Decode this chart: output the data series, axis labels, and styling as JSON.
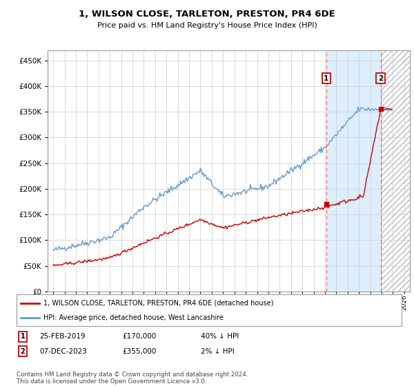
{
  "title": "1, WILSON CLOSE, TARLETON, PRESTON, PR4 6DE",
  "subtitle": "Price paid vs. HM Land Registry's House Price Index (HPI)",
  "legend_line1": "1, WILSON CLOSE, TARLETON, PRESTON, PR4 6DE (detached house)",
  "legend_line2": "HPI: Average price, detached house, West Lancashire",
  "footer": "Contains HM Land Registry data © Crown copyright and database right 2024.\nThis data is licensed under the Open Government Licence v3.0.",
  "sale1_date": "25-FEB-2019",
  "sale1_price": 170000,
  "sale1_label": "40% ↓ HPI",
  "sale1_year": 2019.12,
  "sale2_date": "07-DEC-2023",
  "sale2_price": 355000,
  "sale2_label": "2% ↓ HPI",
  "sale2_year": 2023.92,
  "red_color": "#cc0000",
  "blue_color": "#6699cc",
  "grid_color": "#cccccc",
  "background_color": "#ffffff",
  "plot_bg_color": "#ffffff",
  "shade_between": "#ddeeff",
  "hatch_color": "#cc9999",
  "ylim": [
    0,
    470000
  ],
  "xlim_start": 1994.5,
  "xlim_end": 2026.5
}
